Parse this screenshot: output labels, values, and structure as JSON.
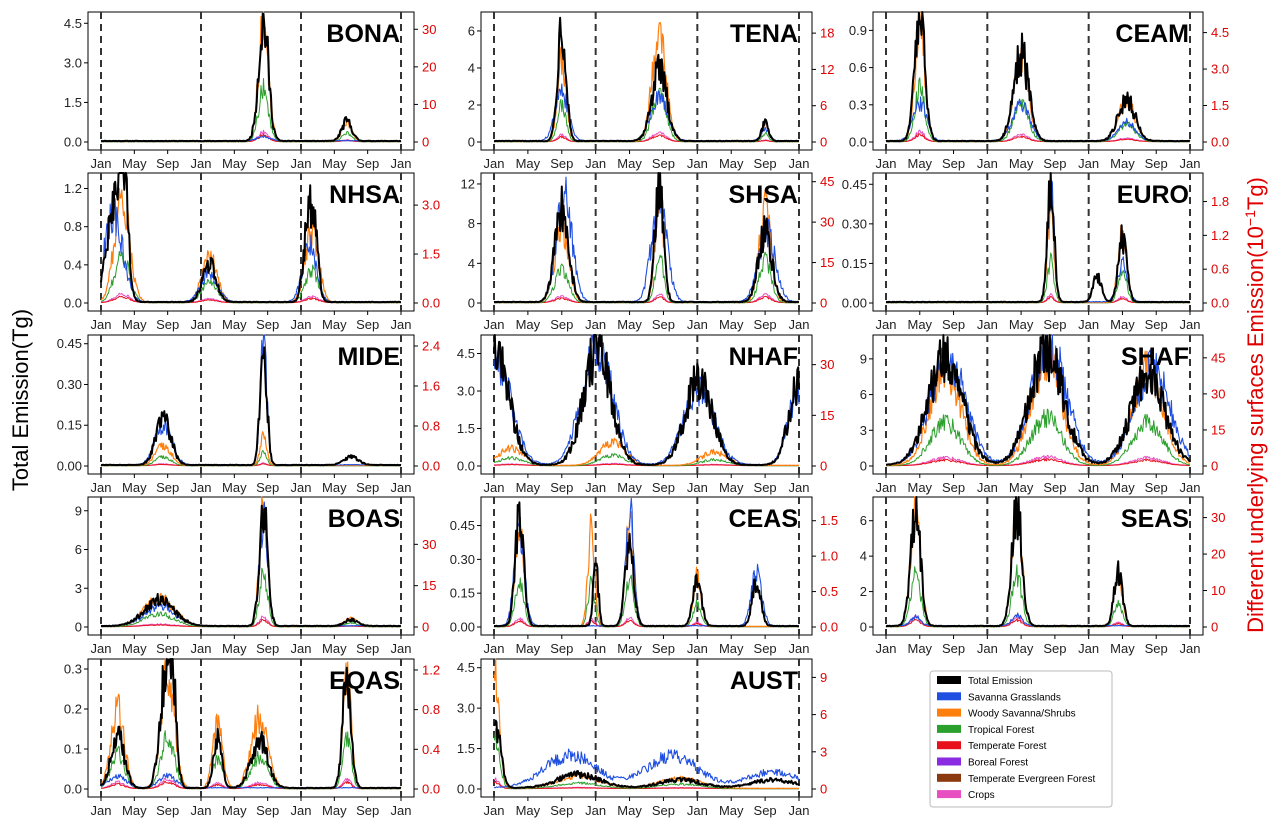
{
  "figure": {
    "left_axis_label": "Total Emission(Tg)",
    "right_axis_label": "Different underlying surfaces Emission(10",
    "right_axis_label_sup": "−1",
    "right_axis_label_end": "Tg)"
  },
  "chart_data": {
    "type": "line",
    "x_ticks": [
      "Jan",
      "May",
      "Sep",
      "Jan",
      "May",
      "Sep",
      "Jan",
      "May",
      "Sep",
      "Jan"
    ],
    "year_boundaries": [
      0,
      12,
      24,
      36
    ],
    "legend_placement": "bottom-right",
    "series": [
      {
        "name": "Total Emission",
        "color": "#000000"
      },
      {
        "name": "Savanna Grasslands",
        "color": "#1f4fe0"
      },
      {
        "name": "Woody Savanna/Shrubs",
        "color": "#ff7f0e"
      },
      {
        "name": "Tropical Forest",
        "color": "#2ca02c"
      },
      {
        "name": "Temperate Forest",
        "color": "#e8101a"
      },
      {
        "name": "Boreal Forest",
        "color": "#8a2be2"
      },
      {
        "name": "Temperate Evergreen Forest",
        "color": "#8b3a0f"
      },
      {
        "name": "Crops",
        "color": "#e84fc0"
      }
    ],
    "panels": [
      {
        "region": "BONA",
        "left_ticks": [
          "0.0",
          "1.5",
          "3.0",
          "4.5"
        ],
        "left_max": 4.7,
        "right_ticks": [
          "0",
          "10",
          "20",
          "30"
        ],
        "right_max": 33,
        "peaks": {
          "total": [
            [
              19.5,
              4.5,
              0.6
            ],
            [
              29.5,
              0.75,
              0.6
            ]
          ],
          "s1": [
            [
              19.5,
              0.15,
              0.8
            ]
          ],
          "s2": [
            [
              19.5,
              31,
              0.6
            ],
            [
              29.5,
              5,
              0.6
            ]
          ]
        }
      },
      {
        "region": "TENA",
        "left_ticks": [
          "0",
          "2",
          "4",
          "6"
        ],
        "left_max": 6.7,
        "right_ticks": [
          "0",
          "6",
          "12",
          "18"
        ],
        "right_max": 20.5,
        "peaks": {
          "total": [
            [
              8,
              6.4,
              0.5
            ],
            [
              19.5,
              3.8,
              0.9
            ],
            [
              32,
              1.0,
              0.4
            ]
          ],
          "s1": [
            [
              8,
              2.5,
              0.8
            ],
            [
              19.5,
              2.3,
              1.0
            ],
            [
              32,
              0.6,
              0.5
            ]
          ],
          "s2": [
            [
              8,
              14,
              0.5
            ],
            [
              19.5,
              19,
              0.8
            ],
            [
              32,
              3,
              0.4
            ]
          ]
        }
      },
      {
        "region": "CEAM",
        "left_ticks": [
          "0.0",
          "0.3",
          "0.6",
          "0.9"
        ],
        "left_max": 1.0,
        "right_ticks": [
          "0.0",
          "1.5",
          "3.0",
          "4.5"
        ],
        "right_max": 5.1,
        "peaks": {
          "total": [
            [
              4,
              1.0,
              0.6
            ],
            [
              16,
              0.7,
              0.9
            ],
            [
              28.5,
              0.33,
              1.0
            ]
          ],
          "s1": [
            [
              4,
              0.3,
              0.8
            ],
            [
              16,
              0.3,
              1.0
            ],
            [
              28.5,
              0.15,
              1.0
            ]
          ],
          "s2": [
            [
              4,
              4.8,
              0.6
            ],
            [
              16,
              3.3,
              0.9
            ],
            [
              28.5,
              1.6,
              1.0
            ]
          ]
        }
      },
      {
        "region": "NHSA",
        "left_ticks": [
          "0.0",
          "0.4",
          "0.8",
          "1.2"
        ],
        "left_max": 1.3,
        "right_ticks": [
          "0.0",
          "1.5",
          "3.0"
        ],
        "right_max": 3.8,
        "peaks": {
          "total": [
            [
              1.5,
              0.9,
              0.9
            ],
            [
              2.7,
              1.25,
              0.5
            ],
            [
              13,
              0.4,
              0.8
            ],
            [
              24.7,
              0.6,
              0.5
            ],
            [
              25.5,
              0.8,
              0.5
            ]
          ],
          "s1": [
            [
              1.5,
              0.9,
              1.1
            ],
            [
              13,
              0.3,
              1.0
            ],
            [
              25,
              0.6,
              0.8
            ]
          ],
          "s2": [
            [
              2.5,
              3.2,
              0.9
            ],
            [
              13,
              1.4,
              0.9
            ],
            [
              25.3,
              2.2,
              0.8
            ]
          ]
        }
      },
      {
        "region": "SHSA",
        "left_ticks": [
          "0",
          "4",
          "8",
          "12"
        ],
        "left_max": 12.5,
        "right_ticks": [
          "0",
          "15",
          "30",
          "45"
        ],
        "right_max": 46,
        "peaks": {
          "total": [
            [
              8,
              9.5,
              0.8
            ],
            [
              19.5,
              12,
              0.5
            ],
            [
              32,
              7,
              0.8
            ]
          ],
          "s1": [
            [
              8.3,
              11,
              0.9
            ],
            [
              19.5,
              10,
              0.9
            ],
            [
              32.2,
              7,
              1.0
            ]
          ],
          "s2": [
            [
              8,
              28,
              0.8
            ],
            [
              19.5,
              38,
              0.5
            ],
            [
              32,
              35,
              0.7
            ]
          ]
        }
      },
      {
        "region": "EURO",
        "left_ticks": [
          "0.00",
          "0.15",
          "0.30",
          "0.45"
        ],
        "left_max": 0.47,
        "right_ticks": [
          "0.0",
          "0.6",
          "1.2",
          "1.8"
        ],
        "right_max": 2.2,
        "peaks": {
          "total": [
            [
              19.5,
              0.45,
              0.4
            ],
            [
              28,
              0.25,
              0.5
            ],
            [
              25,
              0.1,
              0.5
            ]
          ],
          "s1": [
            [
              19.5,
              0.45,
              0.4
            ],
            [
              28,
              0.15,
              0.6
            ]
          ],
          "s2": [
            [
              19.5,
              1.6,
              0.4
            ],
            [
              28,
              1.3,
              0.5
            ]
          ]
        }
      },
      {
        "region": "MIDE",
        "left_ticks": [
          "0.00",
          "0.15",
          "0.30",
          "0.45"
        ],
        "left_max": 0.46,
        "right_ticks": [
          "0.0",
          "0.8",
          "1.6",
          "2.4"
        ],
        "right_max": 2.5,
        "peaks": {
          "total": [
            [
              7.5,
              0.17,
              0.9
            ],
            [
              19.5,
              0.44,
              0.4
            ],
            [
              30,
              0.03,
              0.9
            ]
          ],
          "s1": [
            [
              7.5,
              0.15,
              1.0
            ],
            [
              19.5,
              0.44,
              0.4
            ]
          ],
          "s2": [
            [
              7.5,
              0.4,
              0.9
            ],
            [
              19.5,
              0.6,
              0.4
            ]
          ]
        }
      },
      {
        "region": "NHAF",
        "left_ticks": [
          "0.0",
          "1.5",
          "3.0",
          "4.5"
        ],
        "left_max": 5.0,
        "right_ticks": [
          "0",
          "15",
          "30"
        ],
        "right_max": 37,
        "peaks": {
          "total": [
            [
              0.2,
              4.5,
              1.6
            ],
            [
              12.2,
              4.6,
              1.6
            ],
            [
              24.2,
              3.4,
              1.6
            ],
            [
              36,
              3.2,
              1.2
            ]
          ],
          "s1": [
            [
              0.2,
              4.2,
              1.8
            ],
            [
              12.2,
              4.8,
              1.8
            ],
            [
              24.2,
              3.0,
              1.8
            ],
            [
              36,
              3.0,
              1.2
            ]
          ],
          "s2": [
            [
              2,
              5,
              1.5
            ],
            [
              14,
              7,
              1.5
            ],
            [
              26,
              4,
              1.5
            ]
          ]
        }
      },
      {
        "region": "SHAF",
        "left_ticks": [
          "0",
          "3",
          "6",
          "9"
        ],
        "left_max": 10.5,
        "right_ticks": [
          "0",
          "15",
          "30",
          "45"
        ],
        "right_max": 52,
        "peaks": {
          "total": [
            [
              7,
              9,
              2.0
            ],
            [
              19,
              9.5,
              2.0
            ],
            [
              31,
              7.5,
              2.0
            ]
          ],
          "s1": [
            [
              7.3,
              9,
              2.1
            ],
            [
              19.3,
              9.8,
              2.1
            ],
            [
              31.5,
              8,
              2.1
            ]
          ],
          "s2": [
            [
              7,
              40,
              1.8
            ],
            [
              19,
              44,
              1.8
            ],
            [
              31,
              40,
              1.8
            ]
          ]
        }
      },
      {
        "region": "BOAS",
        "left_ticks": [
          "0",
          "3",
          "6",
          "9"
        ],
        "left_max": 9.6,
        "right_ticks": [
          "0",
          "15",
          "30"
        ],
        "right_max": 45,
        "peaks": {
          "total": [
            [
              7,
              2.0,
              1.8
            ],
            [
              19.5,
              9,
              0.5
            ],
            [
              30,
              0.5,
              0.8
            ]
          ],
          "s1": [
            [
              7,
              1.5,
              1.8
            ],
            [
              19.5,
              8,
              0.5
            ]
          ],
          "s2": [
            [
              7,
              10,
              1.8
            ],
            [
              19.5,
              42,
              0.5
            ],
            [
              30,
              3,
              0.8
            ]
          ]
        }
      },
      {
        "region": "CEAS",
        "left_ticks": [
          "0.00",
          "0.15",
          "0.30",
          "0.45"
        ],
        "left_max": 0.55,
        "right_ticks": [
          "0.0",
          "0.5",
          "1.0",
          "1.5"
        ],
        "right_max": 1.75,
        "peaks": {
          "total": [
            [
              3,
              0.48,
              0.5
            ],
            [
              12,
              0.28,
              0.3
            ],
            [
              16,
              0.38,
              0.5
            ],
            [
              24,
              0.2,
              0.5
            ],
            [
              31,
              0.2,
              0.5
            ]
          ],
          "s1": [
            [
              3,
              0.4,
              0.6
            ],
            [
              16,
              0.5,
              0.5
            ],
            [
              31,
              0.25,
              0.6
            ]
          ],
          "s2": [
            [
              3,
              1.5,
              0.5
            ],
            [
              11.5,
              1.4,
              0.4
            ],
            [
              16,
              1.5,
              0.5
            ],
            [
              24,
              0.7,
              0.5
            ]
          ]
        }
      },
      {
        "region": "SEAS",
        "left_ticks": [
          "0",
          "2",
          "4",
          "6"
        ],
        "left_max": 7.0,
        "right_ticks": [
          "0",
          "10",
          "20",
          "30"
        ],
        "right_max": 34,
        "peaks": {
          "total": [
            [
              3.5,
              6.4,
              0.6
            ],
            [
              15.5,
              6.5,
              0.6
            ],
            [
              27.5,
              3.0,
              0.5
            ]
          ],
          "s1": [
            [
              3.5,
              0.5,
              0.6
            ],
            [
              15.5,
              0.6,
              0.6
            ]
          ],
          "s2": [
            [
              3.5,
              31,
              0.6
            ],
            [
              15.5,
              31,
              0.6
            ],
            [
              27.5,
              14,
              0.5
            ]
          ]
        }
      },
      {
        "region": "EQAS",
        "left_ticks": [
          "0.0",
          "0.1",
          "0.2",
          "0.3"
        ],
        "left_max": 0.31,
        "right_ticks": [
          "0.0",
          "0.4",
          "0.8",
          "1.2"
        ],
        "right_max": 1.25,
        "peaks": {
          "total": [
            [
              2,
              0.13,
              0.8
            ],
            [
              7.5,
              0.22,
              0.6
            ],
            [
              8.5,
              0.3,
              0.5
            ],
            [
              14,
              0.12,
              0.5
            ],
            [
              19,
              0.12,
              1.0
            ],
            [
              29.5,
              0.28,
              0.5
            ]
          ],
          "s1": [
            [
              2,
              0.03,
              1.0
            ],
            [
              8,
              0.03,
              1.0
            ]
          ],
          "s2": [
            [
              2,
              0.8,
              0.8
            ],
            [
              8,
              1.2,
              0.8
            ],
            [
              14,
              0.65,
              0.6
            ],
            [
              19,
              0.7,
              1.0
            ],
            [
              29.5,
              1.2,
              0.5
            ]
          ]
        }
      },
      {
        "region": "AUST",
        "left_ticks": [
          "0.0",
          "1.5",
          "3.0",
          "4.5"
        ],
        "left_max": 4.6,
        "right_ticks": [
          "0",
          "3",
          "6",
          "9"
        ],
        "right_max": 10,
        "peaks": {
          "total": [
            [
              0.2,
              2.2,
              0.6
            ],
            [
              10,
              0.5,
              2.5
            ],
            [
              22,
              0.3,
              2.5
            ],
            [
              33,
              0.3,
              2.5
            ]
          ],
          "s1": [
            [
              9,
              1.2,
              3.0
            ],
            [
              21,
              1.2,
              3.0
            ],
            [
              33,
              0.6,
              3.0
            ]
          ],
          "s2": [
            [
              0.2,
              9,
              0.5
            ],
            [
              10,
              1,
              2.5
            ],
            [
              22,
              0.8,
              2.5
            ]
          ]
        }
      }
    ]
  }
}
